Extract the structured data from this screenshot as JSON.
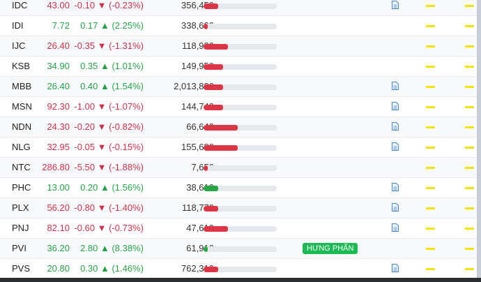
{
  "colors": {
    "up": "#27a04a",
    "down": "#c9324a",
    "bar_red": "#dc3545",
    "bar_green": "#28a745",
    "badge": "#1db954",
    "marker": "#f2e600"
  },
  "rows": [
    {
      "symbol": "IDC",
      "price": "43.00",
      "change": "-0.10 ▼ (-0.23%)",
      "dir": "down",
      "volume": "356,450",
      "bar": 0.2,
      "bar_color": "red",
      "doc": true,
      "badge": ""
    },
    {
      "symbol": "IDI",
      "price": "7.72",
      "change": "0.17 ▲ (2.25%)",
      "dir": "up",
      "volume": "338,600",
      "bar": 0.06,
      "bar_color": "red",
      "doc": false,
      "badge": ""
    },
    {
      "symbol": "IJC",
      "price": "26.40",
      "change": "-0.35 ▼ (-1.31%)",
      "dir": "down",
      "volume": "118,900",
      "bar": 0.33,
      "bar_color": "red",
      "doc": false,
      "badge": ""
    },
    {
      "symbol": "KSB",
      "price": "34.90",
      "change": "0.35 ▲ (1.01%)",
      "dir": "up",
      "volume": "149,950",
      "bar": 0.27,
      "bar_color": "red",
      "doc": false,
      "badge": ""
    },
    {
      "symbol": "MBB",
      "price": "26.40",
      "change": "0.40 ▲ (1.54%)",
      "dir": "up",
      "volume": "2,013,880",
      "bar": 0.27,
      "bar_color": "red",
      "doc": true,
      "badge": ""
    },
    {
      "symbol": "MSN",
      "price": "92.30",
      "change": "-1.00 ▼ (-1.07%)",
      "dir": "down",
      "volume": "144,740",
      "bar": 0.27,
      "bar_color": "red",
      "doc": true,
      "badge": ""
    },
    {
      "symbol": "NDN",
      "price": "24.30",
      "change": "-0.20 ▼ (-0.82%)",
      "dir": "down",
      "volume": "66,640",
      "bar": 0.47,
      "bar_color": "red",
      "doc": true,
      "badge": ""
    },
    {
      "symbol": "NLG",
      "price": "32.95",
      "change": "-0.05 ▼ (-0.15%)",
      "dir": "down",
      "volume": "155,680",
      "bar": 0.47,
      "bar_color": "red",
      "doc": true,
      "badge": ""
    },
    {
      "symbol": "NTC",
      "price": "286.80",
      "change": "-5.50 ▼ (-1.88%)",
      "dir": "down",
      "volume": "7,650",
      "bar": 0.06,
      "bar_color": "red",
      "doc": false,
      "badge": ""
    },
    {
      "symbol": "PHC",
      "price": "13.00",
      "change": "0.20 ▲ (1.56%)",
      "dir": "up",
      "volume": "38,610",
      "bar": 0.2,
      "bar_color": "green",
      "doc": true,
      "badge": ""
    },
    {
      "symbol": "PLX",
      "price": "56.20",
      "change": "-0.80 ▼ (-1.40%)",
      "dir": "down",
      "volume": "118,770",
      "bar": 0.2,
      "bar_color": "red",
      "doc": true,
      "badge": ""
    },
    {
      "symbol": "PNJ",
      "price": "82.10",
      "change": "-0.60 ▼ (-0.73%)",
      "dir": "down",
      "volume": "47,610",
      "bar": 0.33,
      "bar_color": "red",
      "doc": true,
      "badge": ""
    },
    {
      "symbol": "PVI",
      "price": "36.20",
      "change": "2.80 ▲ (8.38%)",
      "dir": "up",
      "volume": "61,910",
      "bar": 0.06,
      "bar_color": "green",
      "doc": false,
      "badge": "HƯNG PHẤN"
    },
    {
      "symbol": "PVS",
      "price": "20.80",
      "change": "0.30 ▲ (1.46%)",
      "dir": "up",
      "volume": "762,310",
      "bar": 0.2,
      "bar_color": "red",
      "doc": true,
      "badge": ""
    }
  ]
}
